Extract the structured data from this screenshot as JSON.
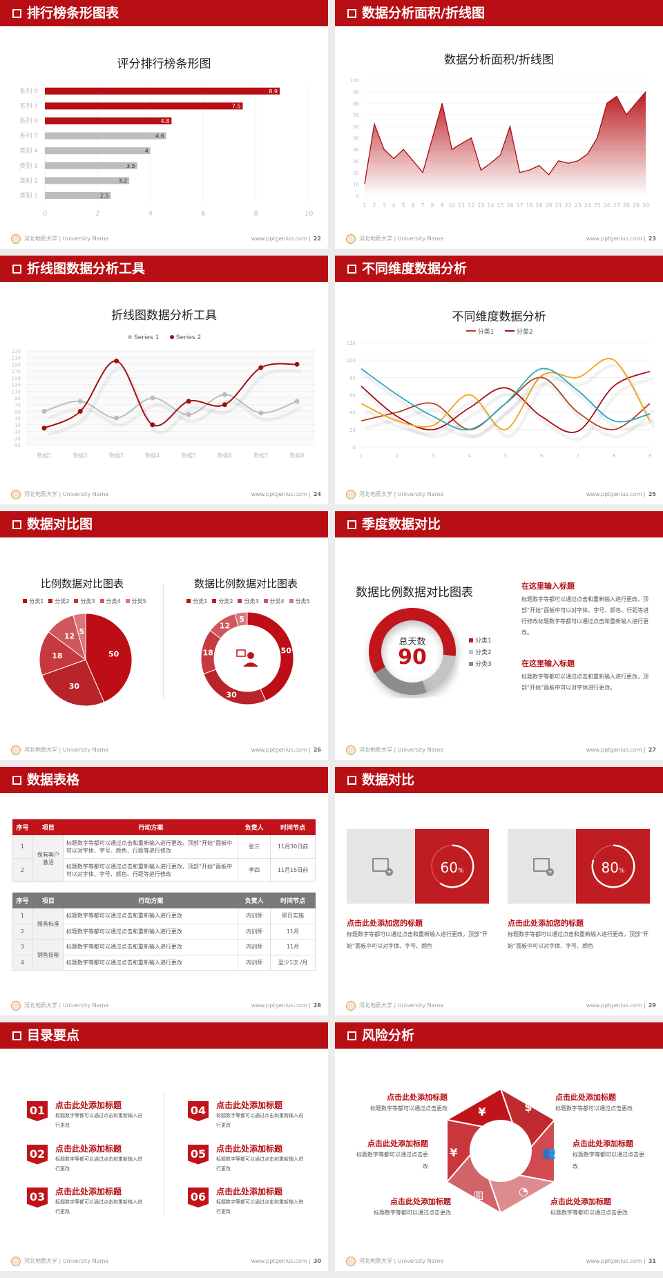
{
  "footer": {
    "school": "河北地质大学 | University Name",
    "site": "www.pptgenius.com  |"
  },
  "slides": [
    {
      "title": "排行榜条形图表",
      "page": "22"
    },
    {
      "title": "数据分析面积/折线图",
      "page": "23"
    },
    {
      "title": "折线图数据分析工具",
      "page": "24"
    },
    {
      "title": "不同维度数据分析",
      "page": "25"
    },
    {
      "title": "数据对比图",
      "page": "26"
    },
    {
      "title": "季度数据对比",
      "page": "27"
    },
    {
      "title": "数据表格",
      "page": "28"
    },
    {
      "title": "数据对比",
      "page": "29"
    },
    {
      "title": "目录要点",
      "page": "30"
    },
    {
      "title": "风险分析",
      "page": "31"
    }
  ],
  "chart_data": [
    {
      "type": "bar",
      "orientation": "horizontal",
      "title": "评分排行榜条形图",
      "categories": [
        "类别 1",
        "类别 2",
        "类别 3",
        "类别 4",
        "系列 5",
        "系列 6",
        "系列 7",
        "系列 8"
      ],
      "values": [
        2.5,
        3.2,
        3.5,
        4,
        4.6,
        4.8,
        7.5,
        8.9
      ],
      "xlim": [
        0,
        10
      ],
      "xticks": [
        0,
        2,
        4,
        6,
        8,
        10
      ],
      "colors": {
        "highlight": "#b70f14",
        "normal": "#bdbdbd"
      }
    },
    {
      "type": "area",
      "title": "数据分析面积/折线图",
      "x": [
        1,
        2,
        3,
        4,
        5,
        6,
        7,
        8,
        9,
        10,
        11,
        12,
        13,
        14,
        15,
        16,
        17,
        18,
        19,
        20,
        21,
        22,
        23,
        24,
        25,
        26,
        27,
        28,
        29,
        30
      ],
      "values": [
        10,
        62,
        40,
        32,
        40,
        30,
        20,
        50,
        80,
        40,
        45,
        50,
        22,
        28,
        35,
        60,
        20,
        22,
        26,
        18,
        30,
        28,
        30,
        36,
        50,
        80,
        86,
        70,
        80,
        90
      ],
      "ylim": [
        0,
        100
      ],
      "yticks": [
        0,
        10,
        20,
        30,
        40,
        50,
        60,
        70,
        80,
        90,
        100
      ],
      "color": "#b70f14"
    },
    {
      "type": "line",
      "smooth": true,
      "title": "折线图数据分析工具",
      "categories": [
        "数据1",
        "数据2",
        "数据3",
        "数据4",
        "数据5",
        "数据6",
        "数据7",
        "数据8"
      ],
      "series": [
        {
          "name": "Series 1",
          "values": [
            50,
            80,
            30,
            90,
            40,
            100,
            45,
            80
          ],
          "color": "#bdbdbd"
        },
        {
          "name": "Series 2",
          "values": [
            0,
            50,
            200,
            10,
            80,
            70,
            180,
            190
          ],
          "color": "#a50d12"
        }
      ],
      "ylim": [
        -50,
        230
      ],
      "yticks": [
        -50,
        -30,
        -10,
        10,
        30,
        50,
        70,
        90,
        110,
        130,
        150,
        170,
        190,
        210,
        230
      ],
      "legend": "top"
    },
    {
      "type": "line",
      "smooth": true,
      "title": "不同维度数据分析",
      "categories": [
        "1",
        "2",
        "3",
        "4",
        "5",
        "6",
        "7",
        "8",
        "9"
      ],
      "series": [
        {
          "name": "分类1",
          "values": [
            30,
            40,
            50,
            20,
            50,
            80,
            40,
            20,
            50
          ],
          "color": "#b4421c"
        },
        {
          "name": "分类2",
          "values": [
            70,
            35,
            20,
            45,
            68,
            35,
            18,
            70,
            87
          ],
          "color": "#a50d12"
        },
        {
          "values": [
            50,
            30,
            25,
            60,
            20,
            82,
            80,
            100,
            30
          ],
          "color": "#f2a20d"
        },
        {
          "values": [
            90,
            60,
            35,
            20,
            50,
            90,
            65,
            30,
            38
          ],
          "color": "#29a7c2"
        }
      ],
      "ylim": [
        0,
        120
      ],
      "yticks": [
        0,
        20,
        40,
        60,
        80,
        100,
        120
      ],
      "legend": "top"
    },
    {
      "type": "pie",
      "title": "比例数据对比图表",
      "categories": [
        "分类1",
        "分类2",
        "分类3",
        "分类4",
        "分类5"
      ],
      "values": [
        50,
        30,
        18,
        12,
        5
      ],
      "colors": [
        "#be0e15",
        "#b9232a",
        "#c63a3f",
        "#d0585c",
        "#d9777a"
      ]
    },
    {
      "type": "pie",
      "donut": true,
      "title": "数据比例数据对比图表",
      "categories": [
        "分类1",
        "分类2",
        "分类3",
        "分类4",
        "分类5"
      ],
      "values": [
        50,
        30,
        18,
        12,
        5
      ],
      "colors": [
        "#be0e15",
        "#b9232a",
        "#c63a3f",
        "#d0585c",
        "#d9777a"
      ]
    },
    {
      "type": "pie",
      "donut": true,
      "title": "数据比例数据对比图表",
      "center_label": "总天数",
      "center_value": "90",
      "categories": [
        "分类1",
        "分类2",
        "分类3"
      ],
      "values": [
        60,
        18,
        22
      ],
      "colors": [
        "#c0141a",
        "#c4c4c4",
        "#8c8c8c"
      ],
      "legend": "right"
    }
  ],
  "quarter": {
    "blocks": [
      {
        "title": "在这里输入标题",
        "text": "标题数字等都可以通过点击和重新输入进行更改，顶部“开始”面板中可以对字体、字号、颜色、行距等进行修改标题数字等都可以通过点击和重新输入进行更改。"
      },
      {
        "title": "在这里输入标题",
        "text": "标题数字等都可以通过点击和重新输入进行更改，顶部“开始”面板中可以对字体进行更改。"
      }
    ]
  },
  "tables": {
    "headers": [
      "序号",
      "项目",
      "行动方案",
      "负责人",
      "时间节点"
    ],
    "t1": {
      "rows": [
        [
          "1",
          "保有客户激活",
          "标题数字等都可以通过点击和重新输入进行更改，顶部“开始”面板中可以对字体、字号、颜色、行距等进行修改",
          "张三",
          "11月30日前"
        ],
        [
          "2",
          "",
          "标题数字等都可以通过点击和重新输入进行更改，顶部“开始”面板中可以对字体、字号、颜色、行距等进行修改",
          "李四",
          "11月15日前"
        ]
      ]
    },
    "t2": {
      "rows": [
        [
          "1",
          "服务标准",
          "标题数字等都可以通过点击和重新输入进行更改",
          "内训师",
          "即日实施"
        ],
        [
          "2",
          "",
          "标题数字等都可以通过点击和重新输入进行更改",
          "内训师",
          "11月"
        ],
        [
          "3",
          "销售技能",
          "标题数字等都可以通过点击和重新输入进行更改",
          "内训师",
          "11月"
        ],
        [
          "4",
          "",
          "标题数字等都可以通过点击和重新输入进行更改",
          "内训师",
          "至少1次 /月"
        ]
      ]
    }
  },
  "compare": {
    "items": [
      {
        "percent": 60,
        "label": "60",
        "unit": "%",
        "title": "点击此处添加您的标题",
        "text": "标题数字等都可以通过点击和重新输入进行更改，顶部“开始”面板中可以对字体、字号、颜色"
      },
      {
        "percent": 80,
        "label": "80",
        "unit": "%",
        "title": "点击此处添加您的标题",
        "text": "标题数字等都可以通过点击和重新输入进行更改，顶部“开始”面板中可以对字体、字号、颜色"
      }
    ]
  },
  "toc": {
    "items": [
      {
        "num": "01",
        "title": "点击此处添加标题",
        "text": "标题数字等都可以通过点击和重新输入进行更改"
      },
      {
        "num": "02",
        "title": "点击此处添加标题",
        "text": "标题数字等都可以通过点击和重新输入进行更改"
      },
      {
        "num": "03",
        "title": "点击此处添加标题",
        "text": "标题数字等都可以通过点击和重新输入进行更改"
      },
      {
        "num": "04",
        "title": "点击此处添加标题",
        "text": "标题数字等都可以通过点击和重新输入进行更改"
      },
      {
        "num": "05",
        "title": "点击此处添加标题",
        "text": "标题数字等都可以通过点击和重新输入进行更改"
      },
      {
        "num": "06",
        "title": "点击此处添加标题",
        "text": "标题数字等都可以通过点击和重新输入进行更改"
      }
    ]
  },
  "risk": {
    "items": [
      {
        "title": "点击此处添加标题",
        "text": "标题数字等都可以通过点击更改",
        "icon": "money-bag-icon"
      },
      {
        "title": "点击此处添加标题",
        "text": "标题数字等都可以通过点击更改",
        "icon": "coins-icon"
      },
      {
        "title": "点击此处添加标题",
        "text": "标题数字等都可以通过点击更改",
        "icon": "hand-yen-icon"
      },
      {
        "title": "点击此处添加标题",
        "text": "标题数字等都可以通过点击更改",
        "icon": "users-icon"
      },
      {
        "title": "点击此处添加标题",
        "text": "标题数字等都可以通过点击更改",
        "icon": "building-icon"
      },
      {
        "title": "点击此处添加标题",
        "text": "标题数字等都可以通过点击更改",
        "icon": "pie-chart-icon"
      }
    ]
  }
}
